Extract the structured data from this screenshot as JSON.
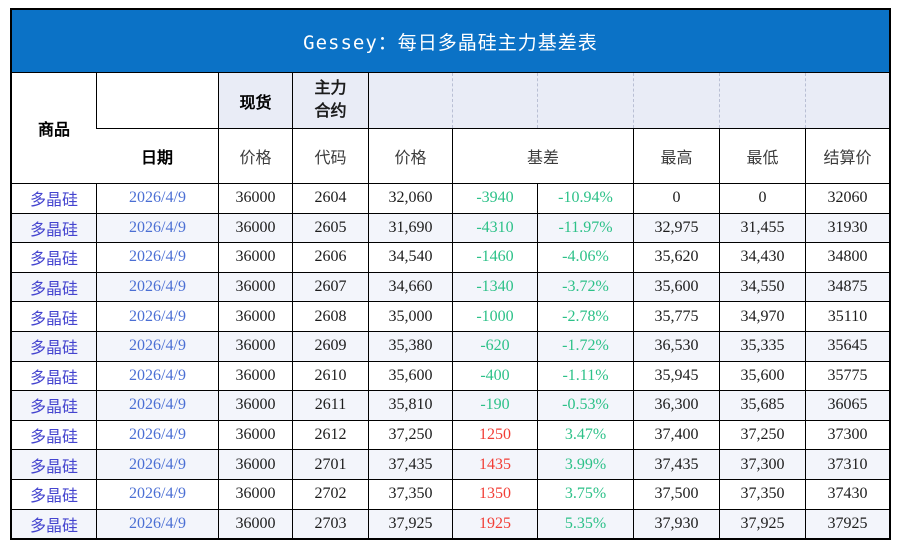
{
  "title": "Gessey：每日多晶硅主力基差表",
  "colors": {
    "title_bar_blue": "#0b72c6",
    "header_fill_lavender": "#e9ecf6",
    "row_stripe": "#f3f5fb",
    "basis_negative_green": "#2cc188",
    "basis_positive_red": "#f23e36",
    "commodity_text_blue": "#4444cf",
    "date_text_blue": "#4b6fd4"
  },
  "header": {
    "commodity": "商品",
    "date": "日期",
    "spot": "现货",
    "main_contract": "主力合约",
    "price_spot": "价格",
    "code": "代码",
    "price_main": "价格",
    "basis": "基差",
    "high": "最高",
    "low": "最低",
    "settle": "结算价"
  },
  "chart_data": {
    "type": "table",
    "title": "Gessey：每日多晶硅主力基差表",
    "columns": [
      "商品",
      "日期",
      "现货价格",
      "主力合约代码",
      "主力合约价格",
      "基差",
      "基差%",
      "最高",
      "最低",
      "结算价"
    ],
    "rows": [
      [
        "多晶硅",
        "2026/4/9",
        "36000",
        "2604",
        "32,060",
        "-3940",
        "-10.94%",
        "0",
        "0",
        "32060"
      ],
      [
        "多晶硅",
        "2026/4/9",
        "36000",
        "2605",
        "31,690",
        "-4310",
        "-11.97%",
        "32,975",
        "31,455",
        "31930"
      ],
      [
        "多晶硅",
        "2026/4/9",
        "36000",
        "2606",
        "34,540",
        "-1460",
        "-4.06%",
        "35,620",
        "34,430",
        "34800"
      ],
      [
        "多晶硅",
        "2026/4/9",
        "36000",
        "2607",
        "34,660",
        "-1340",
        "-3.72%",
        "35,600",
        "34,550",
        "34875"
      ],
      [
        "多晶硅",
        "2026/4/9",
        "36000",
        "2608",
        "35,000",
        "-1000",
        "-2.78%",
        "35,775",
        "34,970",
        "35110"
      ],
      [
        "多晶硅",
        "2026/4/9",
        "36000",
        "2609",
        "35,380",
        "-620",
        "-1.72%",
        "36,530",
        "35,335",
        "35645"
      ],
      [
        "多晶硅",
        "2026/4/9",
        "36000",
        "2610",
        "35,600",
        "-400",
        "-1.11%",
        "35,945",
        "35,600",
        "35775"
      ],
      [
        "多晶硅",
        "2026/4/9",
        "36000",
        "2611",
        "35,810",
        "-190",
        "-0.53%",
        "36,300",
        "35,685",
        "36065"
      ],
      [
        "多晶硅",
        "2026/4/9",
        "36000",
        "2612",
        "37,250",
        "1250",
        "3.47%",
        "37,400",
        "37,250",
        "37300"
      ],
      [
        "多晶硅",
        "2026/4/9",
        "36000",
        "2701",
        "37,435",
        "1435",
        "3.99%",
        "37,435",
        "37,300",
        "37310"
      ],
      [
        "多晶硅",
        "2026/4/9",
        "36000",
        "2702",
        "37,350",
        "1350",
        "3.75%",
        "37,500",
        "37,350",
        "37430"
      ],
      [
        "多晶硅",
        "2026/4/9",
        "36000",
        "2703",
        "37,925",
        "1925",
        "5.35%",
        "37,930",
        "37,925",
        "37925"
      ]
    ]
  }
}
